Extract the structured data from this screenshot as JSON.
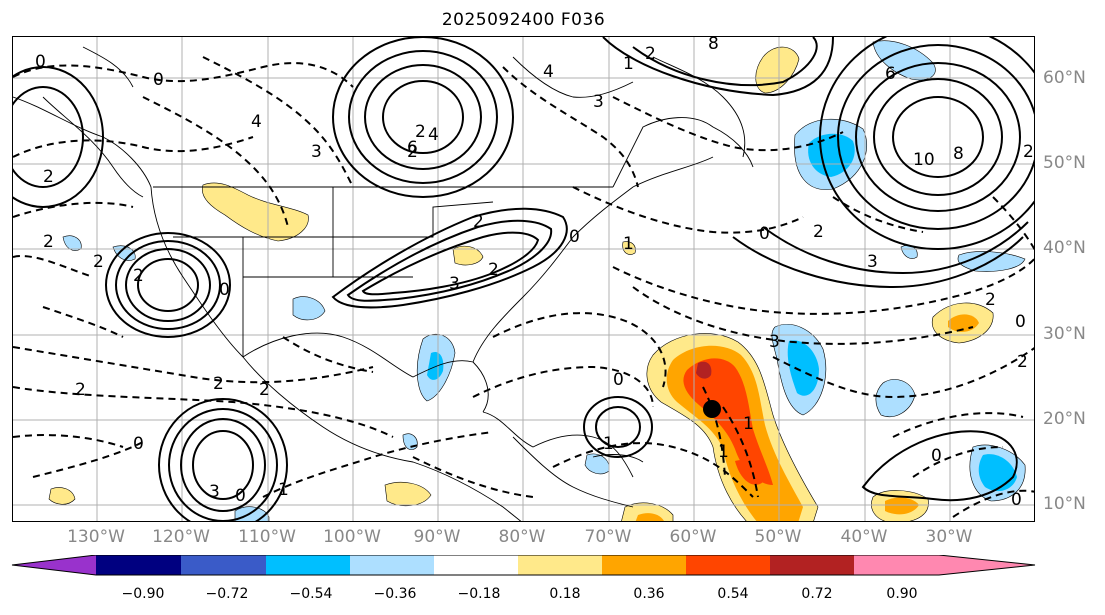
{
  "title": "2025092400 F036",
  "lon_labels": [
    "130°W",
    "120°W",
    "110°W",
    "100°W",
    "90°W",
    "80°W",
    "70°W",
    "60°W",
    "50°W",
    "40°W",
    "30°W"
  ],
  "lat_labels": [
    "60°N",
    "50°N",
    "40°N",
    "30°N",
    "20°N",
    "10°N"
  ],
  "colorbar": {
    "colors": [
      "#9932CC",
      "#000080",
      "#3A5BC8",
      "#00BFFF",
      "#ADDFFF",
      "#FFFFFF",
      "#FFE98A",
      "#FFA500",
      "#FF4500",
      "#B22222",
      "#FF88B0"
    ],
    "tick_labels": [
      "−0.90",
      "−0.72",
      "−0.54",
      "−0.36",
      "−0.18",
      "0.18",
      "0.36",
      "0.54",
      "0.72",
      "0.90"
    ],
    "values": [
      -0.9,
      -0.72,
      -0.54,
      -0.36,
      -0.18,
      0.18,
      0.36,
      0.54,
      0.72,
      0.9
    ]
  },
  "contour_labels": [
    "0",
    "0",
    "2",
    "4",
    "3",
    "2",
    "6",
    "4",
    "2",
    "2",
    "4",
    "1",
    "8",
    "3",
    "6",
    "10",
    "8",
    "2",
    "0",
    "3",
    "2",
    "2",
    "2",
    "2",
    "0",
    "2",
    "3",
    "2",
    "0",
    "1",
    "1",
    "1",
    "2",
    "3",
    "2",
    "0",
    "0",
    "2",
    "2",
    "0",
    "2",
    "0",
    "1",
    "1",
    "3",
    "0",
    "0"
  ],
  "marker": "storm-center",
  "colors": {
    "frame": "#000000",
    "grid": "#b0b0b0",
    "axis_label": "#888888",
    "coast": "#000000"
  }
}
